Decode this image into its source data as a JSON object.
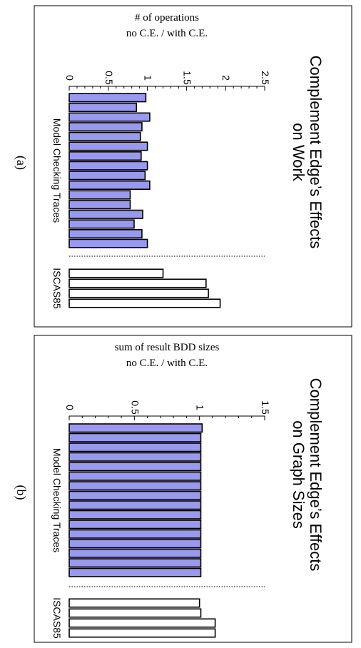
{
  "chart_data": [
    {
      "panel_label": "(a)",
      "type": "bar",
      "title": [
        "Complement Edge’s Effects",
        "on Work"
      ],
      "ylabel": [
        "# of operations",
        "no C.E. / with C.E."
      ],
      "yticks": [
        "0",
        "0.5",
        "1",
        "1.5",
        "2",
        "2.5"
      ],
      "ylim": [
        0,
        2.5
      ],
      "groups": [
        {
          "name": "Model Checking Traces",
          "fill": "#9999ee",
          "values": [
            0.98,
            0.86,
            1.03,
            0.93,
            0.91,
            1.0,
            0.92,
            1.0,
            0.97,
            1.03,
            0.78,
            0.78,
            0.94,
            0.83,
            0.93,
            1.0
          ]
        },
        {
          "name": "ISCAS85",
          "fill": "#ffffff",
          "values": [
            1.2,
            1.75,
            1.78,
            1.93
          ]
        }
      ]
    },
    {
      "panel_label": "(b)",
      "type": "bar",
      "title": [
        "Complement Edge’s Effects",
        "on Graph Sizes"
      ],
      "ylabel": [
        "sum of result BDD sizes",
        "no C.E. / with C.E."
      ],
      "yticks": [
        "0",
        "0.5",
        "1",
        "1.5"
      ],
      "ylim": [
        0,
        1.5
      ],
      "groups": [
        {
          "name": "Model Checking Traces",
          "fill": "#9999ee",
          "values": [
            1.02,
            1.01,
            1.01,
            1.01,
            1.01,
            1.01,
            1.01,
            1.01,
            1.01,
            1.01,
            1.01,
            1.01,
            1.01,
            1.01,
            1.01,
            1.01
          ]
        },
        {
          "name": "ISCAS85",
          "fill": "#ffffff",
          "values": [
            1.0,
            1.01,
            1.12,
            1.12
          ]
        }
      ]
    }
  ]
}
